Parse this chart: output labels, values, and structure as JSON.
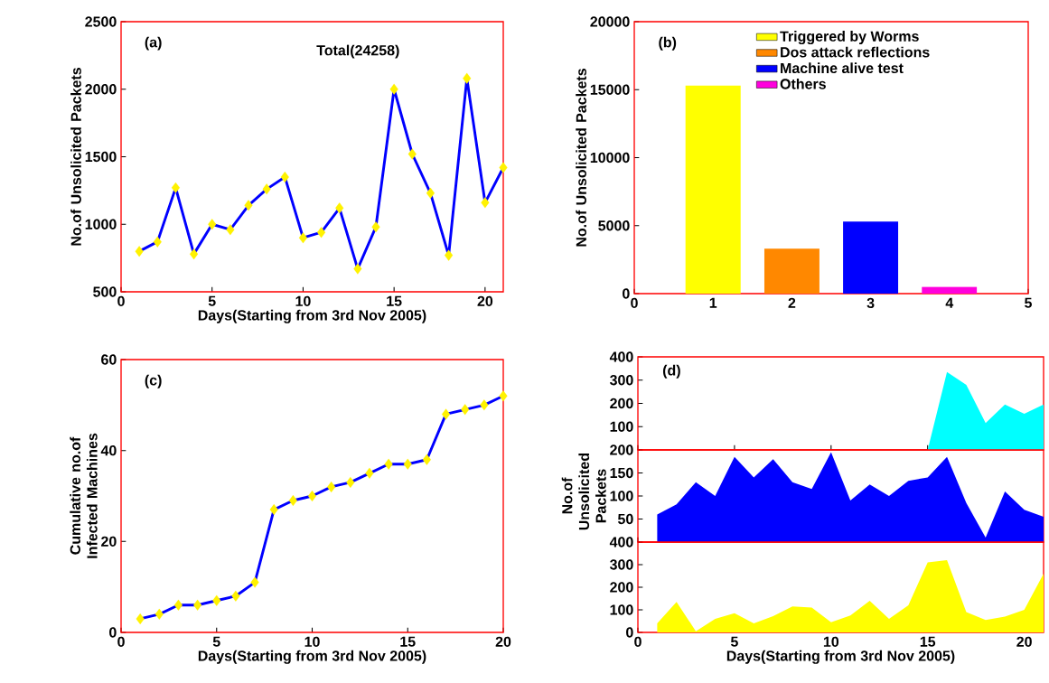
{
  "chart_data": [
    {
      "type": "line",
      "annotations": [
        "(a)",
        "Total(24258)"
      ],
      "xlabel": "Days(Starting from 3rd Nov 2005)",
      "ylabel": "No.of Unsolicited Packets",
      "marker": "diamond",
      "x": [
        1,
        2,
        3,
        4,
        5,
        6,
        7,
        8,
        9,
        10,
        11,
        12,
        13,
        14,
        15,
        16,
        17,
        18,
        19,
        20,
        21
      ],
      "series": [
        {
          "color": "#0000ff",
          "values": [
            800,
            870,
            1270,
            780,
            1000,
            960,
            1140,
            1260,
            1350,
            900,
            940,
            1120,
            670,
            980,
            2000,
            1520,
            1230,
            770,
            2080,
            1160,
            1420
          ]
        }
      ],
      "xlim": [
        0,
        21
      ],
      "ylim": [
        500,
        2500
      ],
      "xticks": [
        0,
        5,
        10,
        15,
        20
      ],
      "yticks": [
        500,
        1000,
        1500,
        2000,
        2500
      ]
    },
    {
      "type": "bar",
      "annotations": [
        "(b)"
      ],
      "ylabel": "No.of Unsolicited Packets",
      "legend": "top right",
      "series": [
        {
          "name": "Triggered by Worms",
          "color": "#ffff00",
          "x": [
            1
          ],
          "values": [
            15300
          ]
        },
        {
          "name": "Dos attack reflections",
          "color": "#ff8800",
          "x": [
            2
          ],
          "values": [
            3300
          ]
        },
        {
          "name": "Machine alive test",
          "color": "#0000ff",
          "x": [
            3
          ],
          "values": [
            5300
          ]
        },
        {
          "name": "Others",
          "color": "#ff00dd",
          "x": [
            4
          ],
          "values": [
            500
          ]
        }
      ],
      "xlim": [
        0,
        5
      ],
      "ylim": [
        0,
        20000
      ],
      "xticks": [
        0,
        1,
        2,
        3,
        4,
        5
      ],
      "yticks": [
        0,
        5000,
        10000,
        15000,
        20000
      ]
    },
    {
      "type": "line",
      "annotations": [
        "(c)"
      ],
      "xlabel": "Days(Starting from 3rd Nov 2005)",
      "ylabel": "Cumulative no.of Infected Machines",
      "marker": "diamond",
      "x": [
        1,
        2,
        3,
        4,
        5,
        6,
        7,
        8,
        9,
        10,
        11,
        12,
        13,
        14,
        15,
        16,
        17,
        18,
        19,
        20
      ],
      "series": [
        {
          "color": "#0000ff",
          "values": [
            3,
            4,
            6,
            6,
            7,
            8,
            11,
            27,
            29,
            30,
            32,
            33,
            35,
            37,
            37,
            38,
            48,
            49,
            50,
            52
          ]
        }
      ],
      "xlim": [
        0,
        20
      ],
      "ylim": [
        0,
        60
      ],
      "xticks": [
        0,
        5,
        10,
        15,
        20
      ],
      "yticks": [
        0,
        20,
        40,
        60
      ]
    },
    {
      "type": "area",
      "annotations": [
        "(d)"
      ],
      "tick_labels": "y",
      "series": [
        {
          "color": "#00ffff",
          "x": [
            15,
            16,
            17,
            18,
            19,
            20,
            21
          ],
          "values": [
            0,
            335,
            280,
            115,
            195,
            155,
            195
          ]
        }
      ],
      "xlim": [
        0,
        21
      ],
      "ylim": [
        0,
        400
      ],
      "xticks": [
        0,
        5,
        10,
        15,
        20
      ],
      "yticks": [
        100,
        200,
        300,
        400
      ]
    },
    {
      "type": "area",
      "ylabel": "No.of Unsolicited Packets",
      "tick_labels": "y",
      "x": [
        1,
        2,
        3,
        4,
        5,
        6,
        7,
        8,
        9,
        10,
        11,
        12,
        13,
        14,
        15,
        16,
        17,
        18,
        19,
        20,
        21
      ],
      "series": [
        {
          "color": "#0000ff",
          "values": [
            60,
            82,
            130,
            100,
            185,
            140,
            180,
            130,
            115,
            195,
            90,
            125,
            100,
            133,
            140,
            185,
            85,
            10,
            110,
            70,
            55
          ]
        }
      ],
      "xlim": [
        0,
        21
      ],
      "ylim": [
        0,
        200
      ],
      "xticks": [
        0,
        5,
        10,
        15,
        20
      ],
      "yticks": [
        50,
        100,
        150,
        200
      ]
    },
    {
      "type": "area",
      "xlabel": "Days(Starting from 3rd Nov 2005)",
      "x": [
        1,
        2,
        3,
        4,
        5,
        6,
        7,
        8,
        9,
        10,
        11,
        12,
        13,
        14,
        15,
        16,
        17,
        18,
        19,
        20,
        21
      ],
      "series": [
        {
          "color": "#ffff00",
          "values": [
            40,
            135,
            5,
            60,
            85,
            40,
            72,
            115,
            110,
            45,
            75,
            140,
            60,
            120,
            310,
            320,
            90,
            55,
            70,
            100,
            260
          ]
        }
      ],
      "xlim": [
        0,
        21
      ],
      "ylim": [
        0,
        400
      ],
      "xticks": [
        0,
        5,
        10,
        15,
        20
      ],
      "yticks": [
        0,
        100,
        200,
        300,
        400
      ]
    }
  ]
}
